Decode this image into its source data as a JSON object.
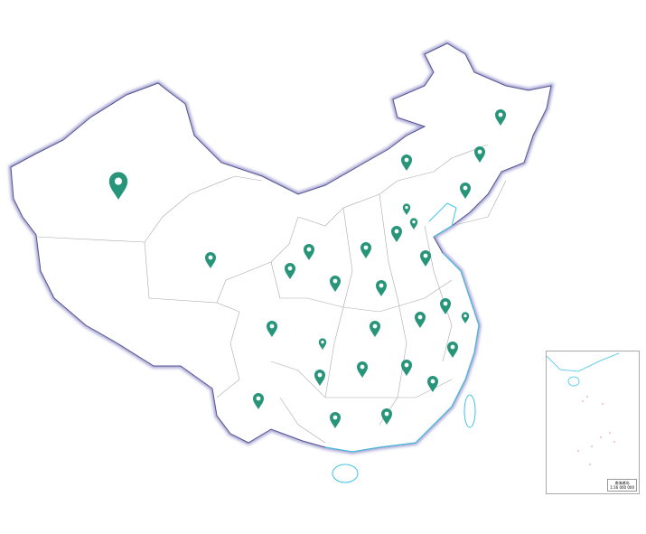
{
  "map": {
    "region": "China",
    "marker_color": "#27957a",
    "border_color": "#6a68a8",
    "coast_color": "#3fc3e6",
    "markers": [
      {
        "name": "Xinjiang",
        "size": "large"
      },
      {
        "name": "Tibet",
        "size": "normal"
      },
      {
        "name": "Sichuan",
        "size": "normal"
      },
      {
        "name": "Yunnan",
        "size": "normal"
      },
      {
        "name": "Ningxia",
        "size": "normal"
      },
      {
        "name": "Gansu",
        "size": "normal"
      },
      {
        "name": "Shaanxi",
        "size": "normal"
      },
      {
        "name": "Shanxi",
        "size": "normal"
      },
      {
        "name": "Hebei",
        "size": "normal"
      },
      {
        "name": "Beijing",
        "size": "small"
      },
      {
        "name": "Tianjin",
        "size": "small"
      },
      {
        "name": "Inner Mongolia",
        "size": "normal"
      },
      {
        "name": "Heilongjiang",
        "size": "normal"
      },
      {
        "name": "Jilin",
        "size": "normal"
      },
      {
        "name": "Liaoning",
        "size": "normal"
      },
      {
        "name": "Shandong",
        "size": "normal"
      },
      {
        "name": "Henan",
        "size": "normal"
      },
      {
        "name": "Hubei",
        "size": "normal"
      },
      {
        "name": "Chongqing",
        "size": "small"
      },
      {
        "name": "Guizhou",
        "size": "normal"
      },
      {
        "name": "Hunan",
        "size": "normal"
      },
      {
        "name": "Guangxi",
        "size": "normal"
      },
      {
        "name": "Guangdong",
        "size": "normal"
      },
      {
        "name": "Jiangxi",
        "size": "normal"
      },
      {
        "name": "Anhui",
        "size": "normal"
      },
      {
        "name": "Jiangsu",
        "size": "normal"
      },
      {
        "name": "Shanghai",
        "size": "small"
      },
      {
        "name": "Zhejiang",
        "size": "normal"
      },
      {
        "name": "Fujian",
        "size": "normal"
      }
    ]
  },
  "inset": {
    "title": "南海诸岛",
    "scale": "1:16 000 000"
  }
}
